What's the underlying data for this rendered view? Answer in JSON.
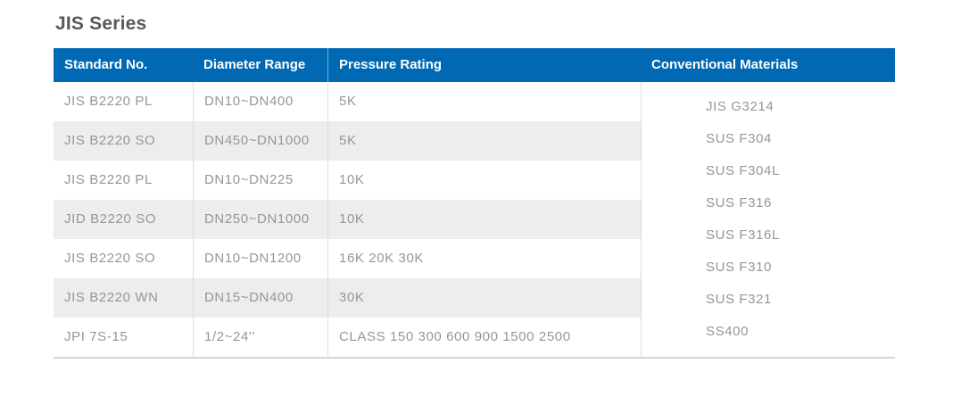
{
  "page": {
    "title": "JIS Series"
  },
  "colors": {
    "header_bg": "#0169b3",
    "header_text": "#ffffff",
    "stripe_bg": "#ededed",
    "body_text": "#949699",
    "title_text": "#58595b",
    "divider": "#dcdcdc"
  },
  "table": {
    "headers": {
      "standard": "Standard No.",
      "diameter": "Diameter Range",
      "pressure": "Pressure Rating",
      "materials": "Conventional Materials"
    },
    "rows": [
      {
        "standard": "JIS B2220 PL",
        "diameter": "DN10~DN400",
        "pressure": "5K"
      },
      {
        "standard": "JIS B2220 SO",
        "diameter": "DN450~DN1000",
        "pressure": "5K"
      },
      {
        "standard": "JIS B2220 PL",
        "diameter": "DN10~DN225",
        "pressure": "10K"
      },
      {
        "standard": "JID B2220 SO",
        "diameter": "DN250~DN1000",
        "pressure": "10K"
      },
      {
        "standard": "JIS B2220 SO",
        "diameter": "DN10~DN1200",
        "pressure": "16K 20K 30K"
      },
      {
        "standard": "JIS B2220 WN",
        "diameter": "DN15~DN400",
        "pressure": "30K"
      },
      {
        "standard": "JPI 7S-15",
        "diameter": "1/2~24''",
        "pressure": "CLASS 150 300 600 900 1500 2500"
      }
    ],
    "materials": [
      "JIS G3214",
      "SUS F304",
      "SUS F304L",
      "SUS F316",
      "SUS F316L",
      "SUS F310",
      "SUS F321",
      "SS400"
    ]
  }
}
